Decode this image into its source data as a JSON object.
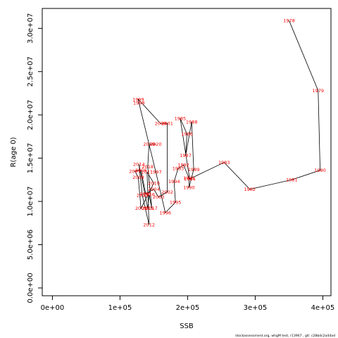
{
  "chart_data": {
    "type": "line",
    "xlabel": "SSB",
    "ylabel": "R(age 0)",
    "xlim": [
      -15000,
      412000
    ],
    "ylim": [
      -900000,
      32300000
    ],
    "x_ticks": [
      0,
      100000,
      200000,
      300000,
      400000
    ],
    "x_tick_labels": [
      "0e+00",
      "1e+05",
      "2e+05",
      "3e+05",
      "4e+05"
    ],
    "y_ticks": [
      0,
      5000000,
      10000000,
      15000000,
      20000000,
      25000000,
      30000000
    ],
    "y_tick_labels": [
      "0.0e+00",
      "5.0e+06",
      "1.0e+07",
      "1.5e+07",
      "2.0e+07",
      "2.5e+07",
      "3.0e+07"
    ],
    "grid": false,
    "line_color": "#000000",
    "label_color": "#ff0000",
    "points": [
      {
        "year": "1978",
        "x": 350000,
        "y": 30900000
      },
      {
        "year": "1979",
        "x": 393000,
        "y": 22800000
      },
      {
        "year": "1980",
        "x": 396000,
        "y": 13600000
      },
      {
        "year": "1981",
        "x": 354000,
        "y": 12500000
      },
      {
        "year": "1982",
        "x": 292000,
        "y": 11400000
      },
      {
        "year": "1983",
        "x": 254000,
        "y": 14500000
      },
      {
        "year": "1984",
        "x": 203000,
        "y": 12600000
      },
      {
        "year": "1985",
        "x": 189000,
        "y": 19600000
      },
      {
        "year": "1986",
        "x": 199000,
        "y": 17800000
      },
      {
        "year": "1987",
        "x": 197000,
        "y": 15300000
      },
      {
        "year": "1988",
        "x": 206000,
        "y": 19200000
      },
      {
        "year": "1989",
        "x": 209000,
        "y": 13700000
      },
      {
        "year": "1990",
        "x": 202000,
        "y": 11600000
      },
      {
        "year": "1991",
        "x": 202000,
        "y": 12700000
      },
      {
        "year": "1992",
        "x": 194000,
        "y": 14200000
      },
      {
        "year": "1993",
        "x": 186000,
        "y": 13800000
      },
      {
        "year": "1994",
        "x": 180000,
        "y": 12300000
      },
      {
        "year": "1995",
        "x": 182000,
        "y": 9900000
      },
      {
        "year": "1996",
        "x": 167000,
        "y": 8700000
      },
      {
        "year": "1997",
        "x": 153000,
        "y": 13400000
      },
      {
        "year": "1998",
        "x": 128000,
        "y": 21400000
      },
      {
        "year": "1999",
        "x": 127000,
        "y": 21800000
      },
      {
        "year": "2000",
        "x": 160000,
        "y": 19000000
      },
      {
        "year": "2001",
        "x": 170000,
        "y": 19000000
      },
      {
        "year": "2002",
        "x": 170000,
        "y": 11100000
      },
      {
        "year": "2003",
        "x": 157000,
        "y": 10500000
      },
      {
        "year": "2004",
        "x": 150000,
        "y": 11400000
      },
      {
        "year": "2005",
        "x": 138000,
        "y": 10900000
      },
      {
        "year": "2006",
        "x": 131000,
        "y": 13600000
      },
      {
        "year": "2007",
        "x": 122000,
        "y": 13500000
      },
      {
        "year": "2008",
        "x": 127000,
        "y": 12800000
      },
      {
        "year": "2009",
        "x": 131000,
        "y": 9200000
      },
      {
        "year": "2010",
        "x": 150000,
        "y": 12100000
      },
      {
        "year": "2011",
        "x": 140000,
        "y": 13400000
      },
      {
        "year": "2012",
        "x": 143000,
        "y": 7300000
      },
      {
        "year": "2013",
        "x": 133000,
        "y": 10700000
      },
      {
        "year": "2014",
        "x": 128000,
        "y": 14300000
      },
      {
        "year": "2015",
        "x": 141000,
        "y": 9200000
      },
      {
        "year": "2016",
        "x": 143000,
        "y": 10800000
      },
      {
        "year": "2017",
        "x": 147000,
        "y": 9200000
      },
      {
        "year": "2018",
        "x": 141000,
        "y": 14000000
      },
      {
        "year": "2019",
        "x": 143000,
        "y": 16600000
      },
      {
        "year": "2020",
        "x": 153000,
        "y": 16600000
      }
    ]
  },
  "footer": {
    "text": "stockassessment.org, whgM test, r13967 , git: c28bdc2a44ad"
  }
}
